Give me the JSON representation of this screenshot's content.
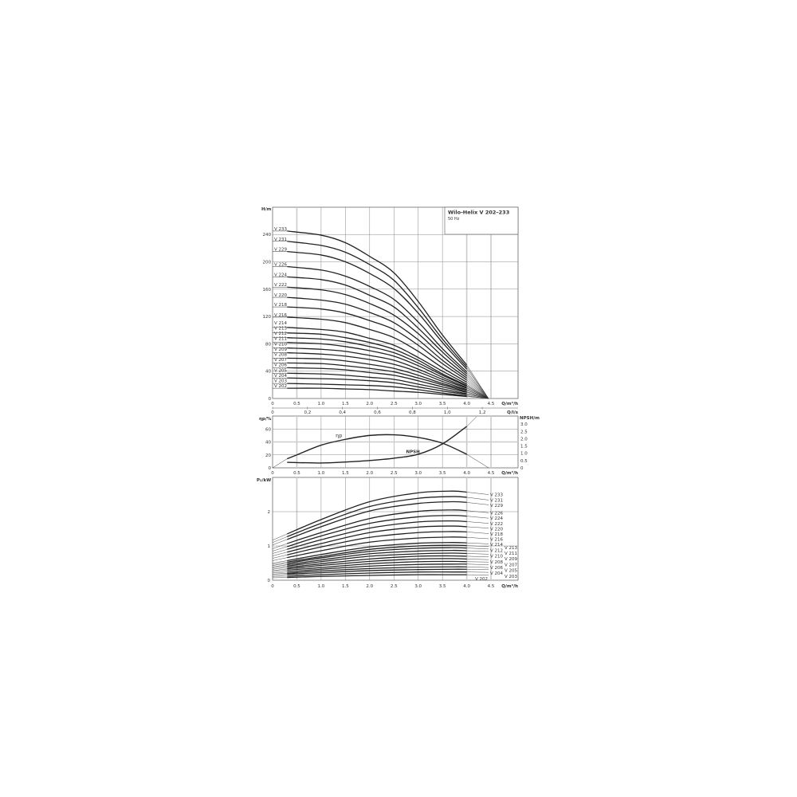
{
  "title_box": {
    "title": "Wilo-Helix V 202–233",
    "subtitle": "50 Hz"
  },
  "chart_data": [
    {
      "type": "line",
      "ylabel": "H/m",
      "xlabel": "Q/m³/h",
      "xlim": [
        0,
        5
      ],
      "ylim": [
        0,
        250
      ],
      "grid": true,
      "x_ticks": [
        "0",
        "0.5",
        "1.0",
        "1.5",
        "2.0",
        "2.5",
        "3.0",
        "3.5",
        "4.0",
        "4.5"
      ],
      "y_ticks": [
        "0",
        "40",
        "80",
        "120",
        "160",
        "200",
        "240"
      ],
      "x": [
        0.3,
        1.0,
        1.5,
        2.0,
        2.5,
        3.0,
        3.5,
        4.0,
        4.45
      ],
      "series": [
        {
          "name": "V 233",
          "values": [
            245,
            239,
            228,
            208,
            184,
            142,
            93,
            49,
            0
          ]
        },
        {
          "name": "V 231",
          "values": [
            230,
            224,
            214,
            196,
            173,
            133,
            87,
            46,
            0
          ]
        },
        {
          "name": "V 229",
          "values": [
            215,
            210,
            200,
            183,
            161,
            125,
            82,
            43,
            0
          ]
        },
        {
          "name": "V 226",
          "values": [
            193,
            188,
            179,
            164,
            145,
            112,
            73,
            39,
            0
          ]
        },
        {
          "name": "V 224",
          "values": [
            178,
            174,
            166,
            151,
            134,
            103,
            68,
            36,
            0
          ]
        },
        {
          "name": "V 222",
          "values": [
            163,
            159,
            152,
            139,
            122,
            95,
            62,
            33,
            0
          ]
        },
        {
          "name": "V 220",
          "values": [
            148,
            144,
            138,
            126,
            111,
            86,
            56,
            30,
            0
          ]
        },
        {
          "name": "V 218",
          "values": [
            134,
            131,
            125,
            114,
            101,
            78,
            51,
            27,
            0
          ]
        },
        {
          "name": "V 216",
          "values": [
            119,
            116,
            111,
            101,
            89,
            69,
            45,
            24,
            0
          ]
        },
        {
          "name": "V 214",
          "values": [
            104,
            101,
            97,
            88,
            78,
            60,
            40,
            21,
            0
          ]
        },
        {
          "name": "V 213",
          "values": [
            96,
            94,
            89,
            82,
            72,
            56,
            36,
            19,
            0
          ]
        },
        {
          "name": "V 212",
          "values": [
            89,
            87,
            83,
            76,
            67,
            52,
            34,
            18,
            0
          ]
        },
        {
          "name": "V 211",
          "values": [
            82,
            80,
            76,
            70,
            62,
            48,
            31,
            16,
            0
          ]
        },
        {
          "name": "V 210",
          "values": [
            74,
            72,
            69,
            63,
            56,
            43,
            28,
            15,
            0
          ]
        },
        {
          "name": "V 209",
          "values": [
            67,
            65,
            62,
            57,
            50,
            39,
            25,
            13,
            0
          ]
        },
        {
          "name": "V 208",
          "values": [
            59,
            58,
            55,
            50,
            44,
            34,
            22,
            12,
            0
          ]
        },
        {
          "name": "V 207",
          "values": [
            52,
            51,
            48,
            44,
            39,
            30,
            20,
            10,
            0
          ]
        },
        {
          "name": "V 206",
          "values": [
            45,
            44,
            42,
            38,
            34,
            26,
            17,
            9,
            0
          ]
        },
        {
          "name": "V 205",
          "values": [
            37,
            36,
            34,
            31,
            28,
            21,
            14,
            7,
            0
          ]
        },
        {
          "name": "V 204",
          "values": [
            30,
            29,
            28,
            26,
            23,
            17,
            11,
            6,
            0
          ]
        },
        {
          "name": "V 203",
          "values": [
            22,
            21,
            20,
            19,
            17,
            13,
            8,
            4,
            0
          ]
        },
        {
          "name": "V 202",
          "values": [
            15,
            15,
            14,
            13,
            11,
            9,
            6,
            3,
            0
          ]
        }
      ]
    },
    {
      "type": "line",
      "ylabel": "ηp/%",
      "y2label": "NPSH/m",
      "xlabel": "Q/m³/h",
      "x2label": "Q/l/s",
      "xlim": [
        0,
        5
      ],
      "ylim": [
        0,
        80
      ],
      "y2lim": [
        0,
        3.5
      ],
      "grid": true,
      "x_ticks": [
        "0",
        "0.5",
        "1.0",
        "1.5",
        "2.0",
        "2.5",
        "3.0",
        "3.5",
        "4.0",
        "4.5"
      ],
      "x2_ticks": [
        "0",
        "0,2",
        "0,4",
        "0,6",
        "0,8",
        "1,0",
        "1,2"
      ],
      "y_ticks": [
        "0",
        "20",
        "40",
        "60"
      ],
      "y2_ticks": [
        "0",
        "0.5",
        "1.0",
        "1.5",
        "2.0",
        "2.5",
        "3.0"
      ],
      "series": [
        {
          "name": "ηp",
          "axis": "left",
          "x": [
            0,
            0.3,
            0.5,
            1.0,
            1.5,
            2.0,
            2.5,
            3.0,
            3.5,
            4.0,
            4.45
          ],
          "values": [
            0,
            14,
            20,
            35,
            44,
            50,
            51,
            47,
            38,
            21,
            0
          ]
        },
        {
          "name": "NPSH",
          "axis": "right",
          "x": [
            0.3,
            1.0,
            1.5,
            2.0,
            2.5,
            3.0,
            3.5,
            4.0,
            4.2
          ],
          "values": [
            0.38,
            0.33,
            0.4,
            0.5,
            0.66,
            0.93,
            1.64,
            2.84,
            3.5
          ]
        }
      ]
    },
    {
      "type": "line",
      "ylabel": "P₂/kW",
      "xlabel": "Q/m³/h",
      "xlim": [
        0,
        5
      ],
      "ylim": [
        0,
        3
      ],
      "grid": true,
      "x_ticks": [
        "0",
        "0.5",
        "1.0",
        "1.5",
        "2.0",
        "2.5",
        "3.0",
        "3.5",
        "4.0",
        "4.5"
      ],
      "y_ticks": [
        "0",
        "1",
        "2"
      ],
      "x": [
        0,
        0.3,
        1.0,
        2.0,
        3.0,
        3.7,
        4.0,
        4.45
      ],
      "series": [
        {
          "name": "V 233",
          "values": [
            1.17,
            1.35,
            1.77,
            2.29,
            2.55,
            2.6,
            2.57,
            2.5
          ]
        },
        {
          "name": "V 231",
          "values": [
            1.1,
            1.27,
            1.66,
            2.15,
            2.39,
            2.44,
            2.42,
            2.34
          ]
        },
        {
          "name": "V 229",
          "values": [
            1.03,
            1.19,
            1.56,
            2.02,
            2.24,
            2.29,
            2.27,
            2.2
          ]
        },
        {
          "name": "V 226",
          "values": [
            0.92,
            1.07,
            1.39,
            1.8,
            2.01,
            2.05,
            2.03,
            1.97
          ]
        },
        {
          "name": "V 224",
          "values": [
            0.85,
            0.98,
            1.29,
            1.66,
            1.85,
            1.89,
            1.87,
            1.81
          ]
        },
        {
          "name": "V 222",
          "values": [
            0.78,
            0.9,
            1.18,
            1.52,
            1.7,
            1.73,
            1.71,
            1.66
          ]
        },
        {
          "name": "V 220",
          "values": [
            0.71,
            0.82,
            1.07,
            1.39,
            1.55,
            1.58,
            1.56,
            1.52
          ]
        },
        {
          "name": "V 218",
          "values": [
            0.64,
            0.74,
            0.97,
            1.25,
            1.39,
            1.42,
            1.41,
            1.36
          ]
        },
        {
          "name": "V 216",
          "values": [
            0.57,
            0.66,
            0.86,
            1.11,
            1.23,
            1.26,
            1.25,
            1.21
          ]
        },
        {
          "name": "V 214",
          "values": [
            0.5,
            0.57,
            0.75,
            0.97,
            1.08,
            1.1,
            1.09,
            1.06
          ]
        },
        {
          "name": "V 213",
          "values": [
            0.46,
            0.53,
            0.69,
            0.9,
            1.0,
            1.02,
            1.01,
            0.98
          ]
        },
        {
          "name": "V 212",
          "values": [
            0.43,
            0.49,
            0.65,
            0.84,
            0.93,
            0.95,
            0.94,
            0.91
          ]
        },
        {
          "name": "V 211",
          "values": [
            0.39,
            0.45,
            0.59,
            0.77,
            0.85,
            0.87,
            0.86,
            0.84
          ]
        },
        {
          "name": "V 210",
          "values": [
            0.36,
            0.41,
            0.54,
            0.7,
            0.77,
            0.79,
            0.78,
            0.76
          ]
        },
        {
          "name": "V 209",
          "values": [
            0.32,
            0.37,
            0.48,
            0.62,
            0.7,
            0.71,
            0.7,
            0.68
          ]
        },
        {
          "name": "V 208",
          "values": [
            0.28,
            0.33,
            0.43,
            0.55,
            0.62,
            0.63,
            0.62,
            0.6
          ]
        },
        {
          "name": "V 207",
          "values": [
            0.25,
            0.29,
            0.37,
            0.48,
            0.54,
            0.55,
            0.54,
            0.53
          ]
        },
        {
          "name": "V 206",
          "values": [
            0.21,
            0.24,
            0.32,
            0.41,
            0.46,
            0.47,
            0.47,
            0.45
          ]
        },
        {
          "name": "V 205",
          "values": [
            0.18,
            0.2,
            0.27,
            0.34,
            0.38,
            0.39,
            0.39,
            0.37
          ]
        },
        {
          "name": "V 204",
          "values": [
            0.14,
            0.17,
            0.22,
            0.28,
            0.31,
            0.32,
            0.32,
            0.31
          ]
        },
        {
          "name": "V 203",
          "values": [
            0.11,
            0.12,
            0.16,
            0.21,
            0.24,
            0.24,
            0.24,
            0.23
          ]
        },
        {
          "name": "V 202",
          "values": [
            0.07,
            0.08,
            0.11,
            0.14,
            0.16,
            0.16,
            0.16,
            0.15
          ]
        }
      ]
    }
  ]
}
